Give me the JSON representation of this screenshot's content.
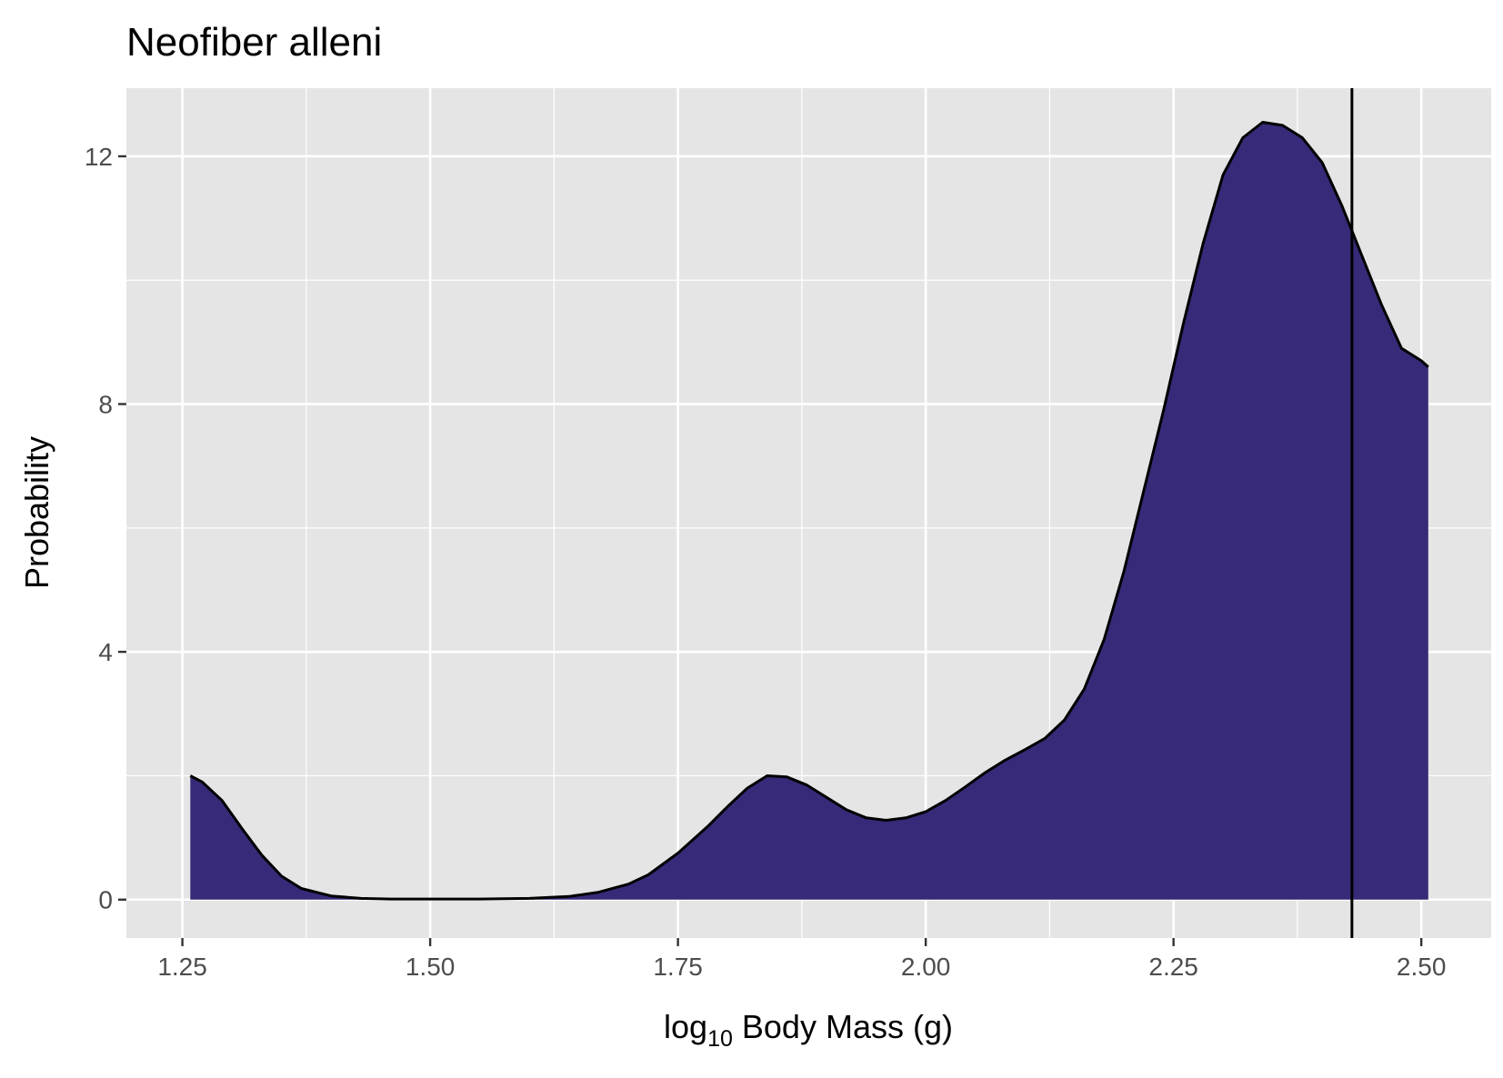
{
  "chart_data": {
    "type": "area",
    "title": "Neofiber alleni",
    "xlabel": {
      "prefix": "log",
      "subscript": "10",
      "suffix": " Body Mass (g)"
    },
    "ylabel": "Probability",
    "xlim": [
      1.1935,
      2.5705
    ],
    "ylim": [
      -0.62,
      13.1
    ],
    "x_ticks": [
      1.25,
      1.5,
      1.75,
      2.0,
      2.25,
      2.5
    ],
    "x_tick_labels": [
      "1.25",
      "1.50",
      "1.75",
      "2.00",
      "2.25",
      "2.50"
    ],
    "y_ticks": [
      0,
      4,
      8,
      12
    ],
    "y_tick_labels": [
      "0",
      "4",
      "8",
      "12"
    ],
    "grid": true,
    "legend": "none",
    "colors": {
      "panel_background": "#e5e5e5",
      "grid": "#ffffff",
      "fill": "#372a78",
      "outline": "#000000",
      "reference_line": "#000000"
    },
    "vertical_line_x": 2.43,
    "series": [
      {
        "x": [
          1.258,
          1.27,
          1.29,
          1.31,
          1.33,
          1.35,
          1.37,
          1.4,
          1.43,
          1.46,
          1.5,
          1.55,
          1.6,
          1.64,
          1.67,
          1.7,
          1.72,
          1.75,
          1.78,
          1.8,
          1.82,
          1.84,
          1.86,
          1.88,
          1.9,
          1.92,
          1.94,
          1.96,
          1.98,
          2.0,
          2.02,
          2.04,
          2.06,
          2.08,
          2.1,
          2.12,
          2.14,
          2.16,
          2.18,
          2.2,
          2.22,
          2.24,
          2.26,
          2.28,
          2.3,
          2.32,
          2.34,
          2.36,
          2.38,
          2.4,
          2.42,
          2.43,
          2.44,
          2.46,
          2.48,
          2.5,
          2.507
        ],
        "y": [
          2.0,
          1.9,
          1.6,
          1.15,
          0.72,
          0.38,
          0.18,
          0.06,
          0.02,
          0.01,
          0.01,
          0.01,
          0.02,
          0.05,
          0.12,
          0.25,
          0.4,
          0.75,
          1.18,
          1.5,
          1.8,
          2.0,
          1.98,
          1.85,
          1.65,
          1.45,
          1.32,
          1.28,
          1.32,
          1.42,
          1.6,
          1.82,
          2.05,
          2.25,
          2.42,
          2.6,
          2.9,
          3.4,
          4.2,
          5.3,
          6.6,
          7.9,
          9.3,
          10.6,
          11.7,
          12.3,
          12.55,
          12.5,
          12.3,
          11.9,
          11.2,
          10.8,
          10.4,
          9.6,
          8.9,
          8.7,
          8.6
        ]
      }
    ]
  }
}
